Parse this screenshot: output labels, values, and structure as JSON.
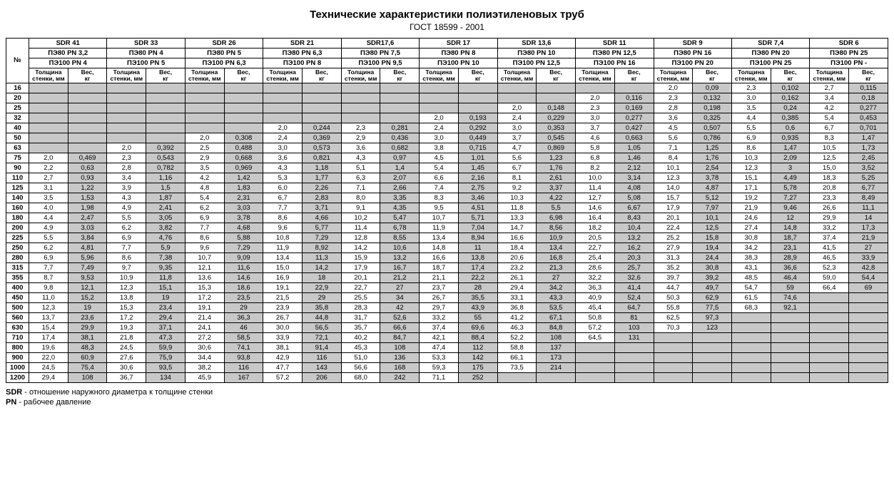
{
  "title": "Технические характеристики полиэтиленовых труб",
  "subtitle": "ГОСТ 18599 - 2001",
  "num_label": "№",
  "groups": [
    {
      "sdr": "SDR 41",
      "pe80": "ПЭ80 PN 3,2",
      "pe100": "ПЭ100 PN 4"
    },
    {
      "sdr": "SDR 33",
      "pe80": "ПЭ80 PN 4",
      "pe100": "ПЭ100 PN 5"
    },
    {
      "sdr": "SDR 26",
      "pe80": "ПЭ80 PN 5",
      "pe100": "ПЭ100 PN 6,3"
    },
    {
      "sdr": "SDR 21",
      "pe80": "ПЭ80 PN 6,3",
      "pe100": "ПЭ100 PN 8"
    },
    {
      "sdr": "SDR17,6",
      "pe80": "ПЭ80 PN 7,5",
      "pe100": "ПЭ100 PN 9,5"
    },
    {
      "sdr": "SDR 17",
      "pe80": "ПЭ80 PN 8",
      "pe100": "ПЭ100 PN 10"
    },
    {
      "sdr": "SDR 13,6",
      "pe80": "ПЭ80 PN 10",
      "pe100": "ПЭ100 PN 12,5"
    },
    {
      "sdr": "SDR 11",
      "pe80": "ПЭ80 PN 12,5",
      "pe100": "ПЭ100 PN 16"
    },
    {
      "sdr": "SDR 9",
      "pe80": "ПЭ80 PN 16",
      "pe100": "ПЭ100 PN 20"
    },
    {
      "sdr": "SDR 7,4",
      "pe80": "ПЭ80 PN 20",
      "pe100": "ПЭ100 PN 25"
    },
    {
      "sdr": "SDR 6",
      "pe80": "ПЭ80 PN 25",
      "pe100": "ПЭ100 PN -"
    }
  ],
  "subheaders": {
    "th": "Толщина стенки, мм",
    "w": "Вес, кг"
  },
  "diameters": [
    "16",
    "20",
    "25",
    "32",
    "40",
    "50",
    "63",
    "75",
    "90",
    "110",
    "125",
    "140",
    "160",
    "180",
    "200",
    "225",
    "250",
    "280",
    "315",
    "355",
    "400",
    "450",
    "500",
    "560",
    "630",
    "710",
    "800",
    "900",
    "1000",
    "1200"
  ],
  "cells": {
    "16": [
      null,
      null,
      null,
      null,
      null,
      null,
      null,
      null,
      null,
      null,
      null,
      null,
      null,
      null,
      null,
      null,
      [
        "2,0",
        "0,09"
      ],
      [
        "2,3",
        "0,102"
      ],
      [
        "2,7",
        "0,115"
      ]
    ],
    "20": [
      null,
      null,
      null,
      null,
      null,
      null,
      null,
      null,
      null,
      null,
      null,
      null,
      null,
      null,
      [
        "2,0",
        "0,116"
      ],
      null,
      [
        "2,3",
        "0,132"
      ],
      [
        "3,0",
        "0,162"
      ],
      [
        "3,4",
        "0,18"
      ]
    ],
    "25": [
      null,
      null,
      null,
      null,
      null,
      null,
      null,
      null,
      null,
      null,
      null,
      null,
      [
        "2,0",
        "0,148"
      ],
      null,
      [
        "2,3",
        "0,169"
      ],
      null,
      [
        "2,8",
        "0,198"
      ],
      [
        "3,5",
        "0,24"
      ],
      [
        "4,2",
        "0,277"
      ]
    ],
    "32": [
      null,
      null,
      null,
      null,
      null,
      null,
      null,
      null,
      null,
      null,
      [
        "2,0",
        "0,193"
      ],
      null,
      [
        "2,4",
        "0,229"
      ],
      null,
      [
        "3,0",
        "0,277"
      ],
      null,
      [
        "3,6",
        "0,325"
      ],
      [
        "4,4",
        "0,385"
      ],
      [
        "5,4",
        "0,453"
      ]
    ],
    "40": [
      null,
      null,
      null,
      null,
      null,
      null,
      [
        "2,0",
        "0,244"
      ],
      null,
      [
        "2,3",
        "0,281"
      ],
      null,
      [
        "2,4",
        "0,292"
      ],
      null,
      [
        "3,0",
        "0,353"
      ],
      null,
      [
        "3,7",
        "0,427"
      ],
      null,
      [
        "4,5",
        "0,507"
      ],
      [
        "5,5",
        "0,6"
      ],
      [
        "6,7",
        "0,701"
      ]
    ],
    "50": [
      null,
      null,
      null,
      null,
      [
        "2,0",
        "0,308"
      ],
      null,
      [
        "2,4",
        "0,369"
      ],
      null,
      [
        "2,9",
        "0,436"
      ],
      null,
      [
        "3,0",
        "0,449"
      ],
      null,
      [
        "3,7",
        "0,545"
      ],
      null,
      [
        "4,6",
        "0,663"
      ],
      null,
      [
        "5,6",
        "0,786"
      ],
      [
        "6,9",
        "0,935"
      ],
      [
        "8,3",
        "1,47"
      ]
    ],
    "63": [
      null,
      null,
      [
        "2,0",
        "0,392"
      ],
      null,
      [
        "2,5",
        "0,488"
      ],
      null,
      [
        "3,0",
        "0,573"
      ],
      null,
      [
        "3,6",
        "0,682"
      ],
      null,
      [
        "3,8",
        "0,715"
      ],
      null,
      [
        "4,7",
        "0,869"
      ],
      null,
      [
        "5,8",
        "1,05"
      ],
      null,
      [
        "7,1",
        "1,25"
      ],
      [
        "8,6",
        "1,47"
      ],
      [
        "10,5",
        "1,73"
      ]
    ],
    "75": [
      [
        "2,0",
        "0,469"
      ],
      null,
      [
        "2,3",
        "0,543"
      ],
      null,
      [
        "2,9",
        "0,668"
      ],
      null,
      [
        "3,6",
        "0,821"
      ],
      null,
      [
        "4,3",
        "0,97"
      ],
      null,
      [
        "4,5",
        "1,01"
      ],
      null,
      [
        "5,6",
        "1,23"
      ],
      null,
      [
        "6,8",
        "1,46"
      ],
      null,
      [
        "8,4",
        "1,76"
      ],
      [
        "10,3",
        "2,09"
      ],
      [
        "12,5",
        "2,45"
      ]
    ],
    "90": [
      [
        "2,2",
        "0,63"
      ],
      null,
      [
        "2,8",
        "0,782"
      ],
      null,
      [
        "3,5",
        "0,969"
      ],
      null,
      [
        "4,3",
        "1,18"
      ],
      null,
      [
        "5,1",
        "1,4"
      ],
      null,
      [
        "5,4",
        "1,45"
      ],
      null,
      [
        "6,7",
        "1,76"
      ],
      null,
      [
        "8,2",
        "2,12"
      ],
      null,
      [
        "10,1",
        "2,54"
      ],
      [
        "12,3",
        "3"
      ],
      [
        "15,0",
        "3,52"
      ]
    ],
    "110": [
      [
        "2,7",
        "0,93"
      ],
      null,
      [
        "3,4",
        "1,16"
      ],
      null,
      [
        "4,2",
        "1,42"
      ],
      null,
      [
        "5,3",
        "1,77"
      ],
      null,
      [
        "6,3",
        "2,07"
      ],
      null,
      [
        "6,6",
        "2,16"
      ],
      null,
      [
        "8,1",
        "2,61"
      ],
      null,
      [
        "10,0",
        "3,14"
      ],
      null,
      [
        "12,3",
        "3,78"
      ],
      [
        "15,1",
        "4,49"
      ],
      [
        "18,3",
        "5,25"
      ]
    ],
    "125": [
      [
        "3,1",
        "1,22"
      ],
      null,
      [
        "3,9",
        "1,5"
      ],
      null,
      [
        "4,8",
        "1,83"
      ],
      null,
      [
        "6,0",
        "2,26"
      ],
      null,
      [
        "7,1",
        "2,66"
      ],
      null,
      [
        "7,4",
        "2,75"
      ],
      null,
      [
        "9,2",
        "3,37"
      ],
      null,
      [
        "11,4",
        "4,08"
      ],
      null,
      [
        "14,0",
        "4,87"
      ],
      [
        "17,1",
        "5,78"
      ],
      [
        "20,8",
        "6,77"
      ]
    ],
    "140": [
      [
        "3,5",
        "1,53"
      ],
      null,
      [
        "4,3",
        "1,87"
      ],
      null,
      [
        "5,4",
        "2,31"
      ],
      null,
      [
        "6,7",
        "2,83"
      ],
      null,
      [
        "8,0",
        "3,35"
      ],
      null,
      [
        "8,3",
        "3,46"
      ],
      null,
      [
        "10,3",
        "4,22"
      ],
      null,
      [
        "12,7",
        "5,08"
      ],
      null,
      [
        "15,7",
        "5,12"
      ],
      [
        "19,2",
        "7,27"
      ],
      [
        "23,3",
        "8,49"
      ]
    ],
    "160": [
      [
        "4,0",
        "1,98"
      ],
      null,
      [
        "4,9",
        "2,41"
      ],
      null,
      [
        "6,2",
        "3,03"
      ],
      null,
      [
        "7,7",
        "3,71"
      ],
      null,
      [
        "9,1",
        "4,35"
      ],
      null,
      [
        "9,5",
        "4,51"
      ],
      null,
      [
        "11,8",
        "5,5"
      ],
      null,
      [
        "14,6",
        "6,67"
      ],
      null,
      [
        "17,9",
        "7,97"
      ],
      [
        "21,9",
        "9,46"
      ],
      [
        "26,6",
        "11,1"
      ]
    ],
    "180": [
      [
        "4,4",
        "2,47"
      ],
      null,
      [
        "5,5",
        "3,05"
      ],
      null,
      [
        "6,9",
        "3,78"
      ],
      null,
      [
        "8,6",
        "4,66"
      ],
      null,
      [
        "10,2",
        "5,47"
      ],
      null,
      [
        "10,7",
        "5,71"
      ],
      null,
      [
        "13,3",
        "6,98"
      ],
      null,
      [
        "16,4",
        "8,43"
      ],
      null,
      [
        "20,1",
        "10,1"
      ],
      [
        "24,6",
        "12"
      ],
      [
        "29,9",
        "14"
      ]
    ],
    "200": [
      [
        "4,9",
        "3,03"
      ],
      null,
      [
        "6,2",
        "3,82"
      ],
      null,
      [
        "7,7",
        "4,68"
      ],
      null,
      [
        "9,6",
        "5,77"
      ],
      null,
      [
        "11,4",
        "6,78"
      ],
      null,
      [
        "11,9",
        "7,04"
      ],
      null,
      [
        "14,7",
        "8,56"
      ],
      null,
      [
        "18,2",
        "10,4"
      ],
      null,
      [
        "22,4",
        "12,5"
      ],
      [
        "27,4",
        "14,8"
      ],
      [
        "33,2",
        "17,3"
      ]
    ],
    "225": [
      [
        "5,5",
        "3,84"
      ],
      null,
      [
        "6,9",
        "4,76"
      ],
      null,
      [
        "8,6",
        "5,88"
      ],
      null,
      [
        "10,8",
        "7,29"
      ],
      null,
      [
        "12,8",
        "8,55"
      ],
      null,
      [
        "13,4",
        "8,94"
      ],
      null,
      [
        "16,6",
        "10,9"
      ],
      null,
      [
        "20,5",
        "13,2"
      ],
      null,
      [
        "25,2",
        "15,8"
      ],
      [
        "30,8",
        "18,7"
      ],
      [
        "37,4",
        "21,9"
      ]
    ],
    "250": [
      [
        "6,2",
        "4,81"
      ],
      null,
      [
        "7,7",
        "5,9"
      ],
      null,
      [
        "9,6",
        "7,29"
      ],
      null,
      [
        "11,9",
        "8,92"
      ],
      null,
      [
        "14,2",
        "10,6"
      ],
      null,
      [
        "14,8",
        "11"
      ],
      null,
      [
        "18,4",
        "13,4"
      ],
      null,
      [
        "22,7",
        "16,2"
      ],
      null,
      [
        "27,9",
        "19,4"
      ],
      [
        "34,2",
        "23,1"
      ],
      [
        "41,5",
        "27"
      ]
    ],
    "280": [
      [
        "6,9",
        "5,96"
      ],
      null,
      [
        "8,6",
        "7,38"
      ],
      null,
      [
        "10,7",
        "9,09"
      ],
      null,
      [
        "13,4",
        "11,3"
      ],
      null,
      [
        "15,9",
        "13,2"
      ],
      null,
      [
        "16,6",
        "13,8"
      ],
      null,
      [
        "20,6",
        "16,8"
      ],
      null,
      [
        "25,4",
        "20,3"
      ],
      null,
      [
        "31,3",
        "24,4"
      ],
      [
        "38,3",
        "28,9"
      ],
      [
        "46,5",
        "33,9"
      ]
    ],
    "315": [
      [
        "7,7",
        "7,49"
      ],
      null,
      [
        "9,7",
        "9,35"
      ],
      null,
      [
        "12,1",
        "11,6"
      ],
      null,
      [
        "15,0",
        "14,2"
      ],
      null,
      [
        "17,9",
        "16,7"
      ],
      null,
      [
        "18,7",
        "17,4"
      ],
      null,
      [
        "23,2",
        "21,3"
      ],
      null,
      [
        "28,6",
        "25,7"
      ],
      null,
      [
        "35,2",
        "30,8"
      ],
      [
        "43,1",
        "36,6"
      ],
      [
        "52,3",
        "42,8"
      ]
    ],
    "355": [
      [
        "8,7",
        "9,53"
      ],
      null,
      [
        "10,9",
        "11,8"
      ],
      null,
      [
        "13,6",
        "14,6"
      ],
      null,
      [
        "16,9",
        "18"
      ],
      null,
      [
        "20,1",
        "21,2"
      ],
      null,
      [
        "21,1",
        "22,2"
      ],
      null,
      [
        "26,1",
        "27"
      ],
      null,
      [
        "32,2",
        "32,6"
      ],
      null,
      [
        "39,7",
        "39,2"
      ],
      [
        "48,5",
        "46,4"
      ],
      [
        "59,0",
        "54,4"
      ]
    ],
    "400": [
      [
        "9,8",
        "12,1"
      ],
      null,
      [
        "12,3",
        "15,1"
      ],
      null,
      [
        "15,3",
        "18,6"
      ],
      null,
      [
        "19,1",
        "22,9"
      ],
      null,
      [
        "22,7",
        "27"
      ],
      null,
      [
        "23,7",
        "28"
      ],
      null,
      [
        "29,4",
        "34,2"
      ],
      null,
      [
        "36,3",
        "41,4"
      ],
      null,
      [
        "44,7",
        "49,7"
      ],
      [
        "54,7",
        "59"
      ],
      [
        "66,4",
        "69"
      ]
    ],
    "450": [
      [
        "11,0",
        "15,2"
      ],
      null,
      [
        "13,8",
        "19"
      ],
      null,
      [
        "17,2",
        "23,5"
      ],
      null,
      [
        "21,5",
        "29"
      ],
      null,
      [
        "25,5",
        "34"
      ],
      null,
      [
        "26,7",
        "35,5"
      ],
      null,
      [
        "33,1",
        "43,3"
      ],
      null,
      [
        "40,9",
        "52,4"
      ],
      null,
      [
        "50,3",
        "62,9"
      ],
      [
        "61,5",
        "74,6"
      ],
      null
    ],
    "500": [
      [
        "12,3",
        "19"
      ],
      null,
      [
        "15,3",
        "23,4"
      ],
      null,
      [
        "19,1",
        "29"
      ],
      null,
      [
        "23,9",
        "35,8"
      ],
      null,
      [
        "28,3",
        "42"
      ],
      null,
      [
        "29,7",
        "43,9"
      ],
      null,
      [
        "36,8",
        "53,5"
      ],
      null,
      [
        "45,4",
        "64,7"
      ],
      null,
      [
        "55,8",
        "77,5"
      ],
      [
        "68,3",
        "92,1"
      ],
      null
    ],
    "560": [
      [
        "13,7",
        "23,6"
      ],
      null,
      [
        "17,2",
        "29,4"
      ],
      null,
      [
        "21,4",
        "36,3"
      ],
      null,
      [
        "26,7",
        "44,8"
      ],
      null,
      [
        "31,7",
        "52,6"
      ],
      null,
      [
        "33,2",
        "55"
      ],
      null,
      [
        "41,2",
        "67,1"
      ],
      null,
      [
        "50,8",
        "81"
      ],
      null,
      [
        "62,5",
        "97,3"
      ],
      null,
      null
    ],
    "630": [
      [
        "15,4",
        "29,9"
      ],
      null,
      [
        "19,3",
        "37,1"
      ],
      null,
      [
        "24,1",
        "46"
      ],
      null,
      [
        "30,0",
        "56,5"
      ],
      null,
      [
        "35,7",
        "66,6"
      ],
      null,
      [
        "37,4",
        "69,6"
      ],
      null,
      [
        "46,3",
        "84,8"
      ],
      null,
      [
        "57,2",
        "103"
      ],
      null,
      [
        "70,3",
        "123"
      ],
      null,
      null
    ],
    "710": [
      [
        "17,4",
        "38,1"
      ],
      null,
      [
        "21,8",
        "47,3"
      ],
      null,
      [
        "27,2",
        "58,5"
      ],
      null,
      [
        "33,9",
        "72,1"
      ],
      null,
      [
        "40,2",
        "84,7"
      ],
      null,
      [
        "42,1",
        "88,4"
      ],
      null,
      [
        "52,2",
        "108"
      ],
      null,
      [
        "64,5",
        "131"
      ],
      null,
      null,
      null,
      null
    ],
    "800": [
      [
        "19,6",
        "48,3"
      ],
      null,
      [
        "24,5",
        "59,9"
      ],
      null,
      [
        "30,6",
        "74,1"
      ],
      null,
      [
        "38,1",
        "91,4"
      ],
      null,
      [
        "45,3",
        "108"
      ],
      null,
      [
        "47,4",
        "112"
      ],
      null,
      [
        "58,8",
        "137"
      ],
      null,
      null,
      null,
      null,
      null,
      null
    ],
    "900": [
      [
        "22,0",
        "60,9"
      ],
      null,
      [
        "27,6",
        "75,9"
      ],
      null,
      [
        "34,4",
        "93,8"
      ],
      null,
      [
        "42,9",
        "116"
      ],
      null,
      [
        "51,0",
        "136"
      ],
      null,
      [
        "53,3",
        "142"
      ],
      null,
      [
        "66,1",
        "173"
      ],
      null,
      null,
      null,
      null,
      null,
      null
    ],
    "1000": [
      [
        "24,5",
        "75,4"
      ],
      null,
      [
        "30,6",
        "93,5"
      ],
      null,
      [
        "38,2",
        "116"
      ],
      null,
      [
        "47,7",
        "143"
      ],
      null,
      [
        "56,6",
        "168"
      ],
      null,
      [
        "59,3",
        "175"
      ],
      null,
      [
        "73,5",
        "214"
      ],
      null,
      null,
      null,
      null,
      null,
      null
    ],
    "1200": [
      [
        "29,4",
        "108"
      ],
      null,
      [
        "36,7",
        "134"
      ],
      null,
      [
        "45,9",
        "167"
      ],
      null,
      [
        "57,2",
        "206"
      ],
      null,
      [
        "68,0",
        "242"
      ],
      null,
      [
        "71,1",
        "252"
      ],
      null,
      null,
      null,
      null,
      null,
      null,
      null,
      null
    ]
  },
  "footnote1_b": "SDR",
  "footnote1": " - отношение наружного диаметра к толщине стенки",
  "footnote2_b": "PN",
  "footnote2": " - рабочее давление",
  "colors": {
    "shaded": "#c8c8c8",
    "border": "#000000",
    "bg": "#ffffff"
  }
}
